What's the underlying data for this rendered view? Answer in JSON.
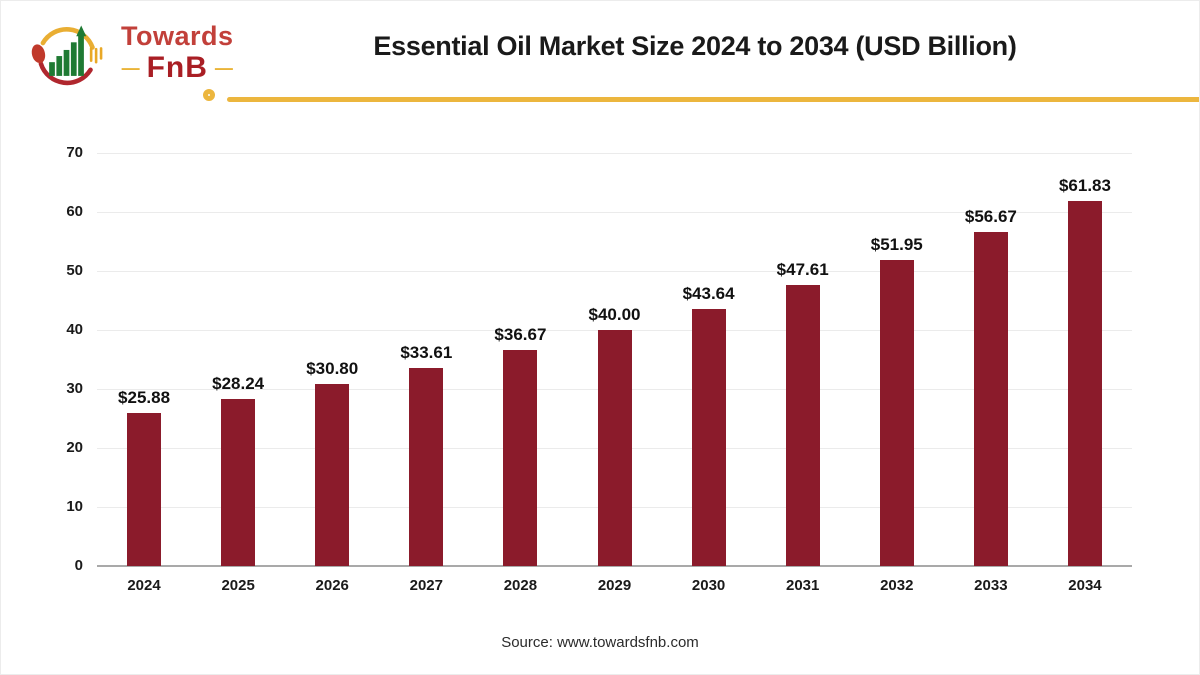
{
  "logo": {
    "name": "Towards FnB",
    "text_top": "Towards",
    "text_bottom": "FnB",
    "dash": "—",
    "colors": {
      "towards_text": "#c2403a",
      "fnb_text": "#a91e24",
      "dash": "#eab437",
      "arc_yellow": "#e9ae33",
      "arc_red": "#b0272e",
      "spoon_red": "#c0392b",
      "bars_green": "#1f7a33"
    }
  },
  "header": {
    "title": "Essential Oil Market Size 2024 to 2034 (USD Billion)",
    "divider_color": "#ecb63e"
  },
  "chart_data": {
    "type": "bar",
    "title": "Essential Oil Market Size 2024 to 2034 (USD Billion)",
    "categories": [
      "2024",
      "2025",
      "2026",
      "2027",
      "2028",
      "2029",
      "2030",
      "2031",
      "2032",
      "2033",
      "2034"
    ],
    "values": [
      25.88,
      28.24,
      30.8,
      33.61,
      36.67,
      40.0,
      43.64,
      47.61,
      51.95,
      56.67,
      61.83
    ],
    "value_labels": [
      "$25.88",
      "$28.24",
      "$30.80",
      "$33.61",
      "$36.67",
      "$40.00",
      "$43.64",
      "$47.61",
      "$51.95",
      "$56.67",
      "$61.83"
    ],
    "xlabel": "",
    "ylabel": "",
    "ylim": [
      0,
      70
    ],
    "yticks": [
      0,
      10,
      20,
      30,
      40,
      50,
      60,
      70
    ],
    "grid": true,
    "legend": false,
    "bar_color": "#8b1b2b",
    "value_prefix": "$",
    "unit": "USD Billion"
  },
  "footer": {
    "source": "Source: www.towardsfnb.com"
  }
}
